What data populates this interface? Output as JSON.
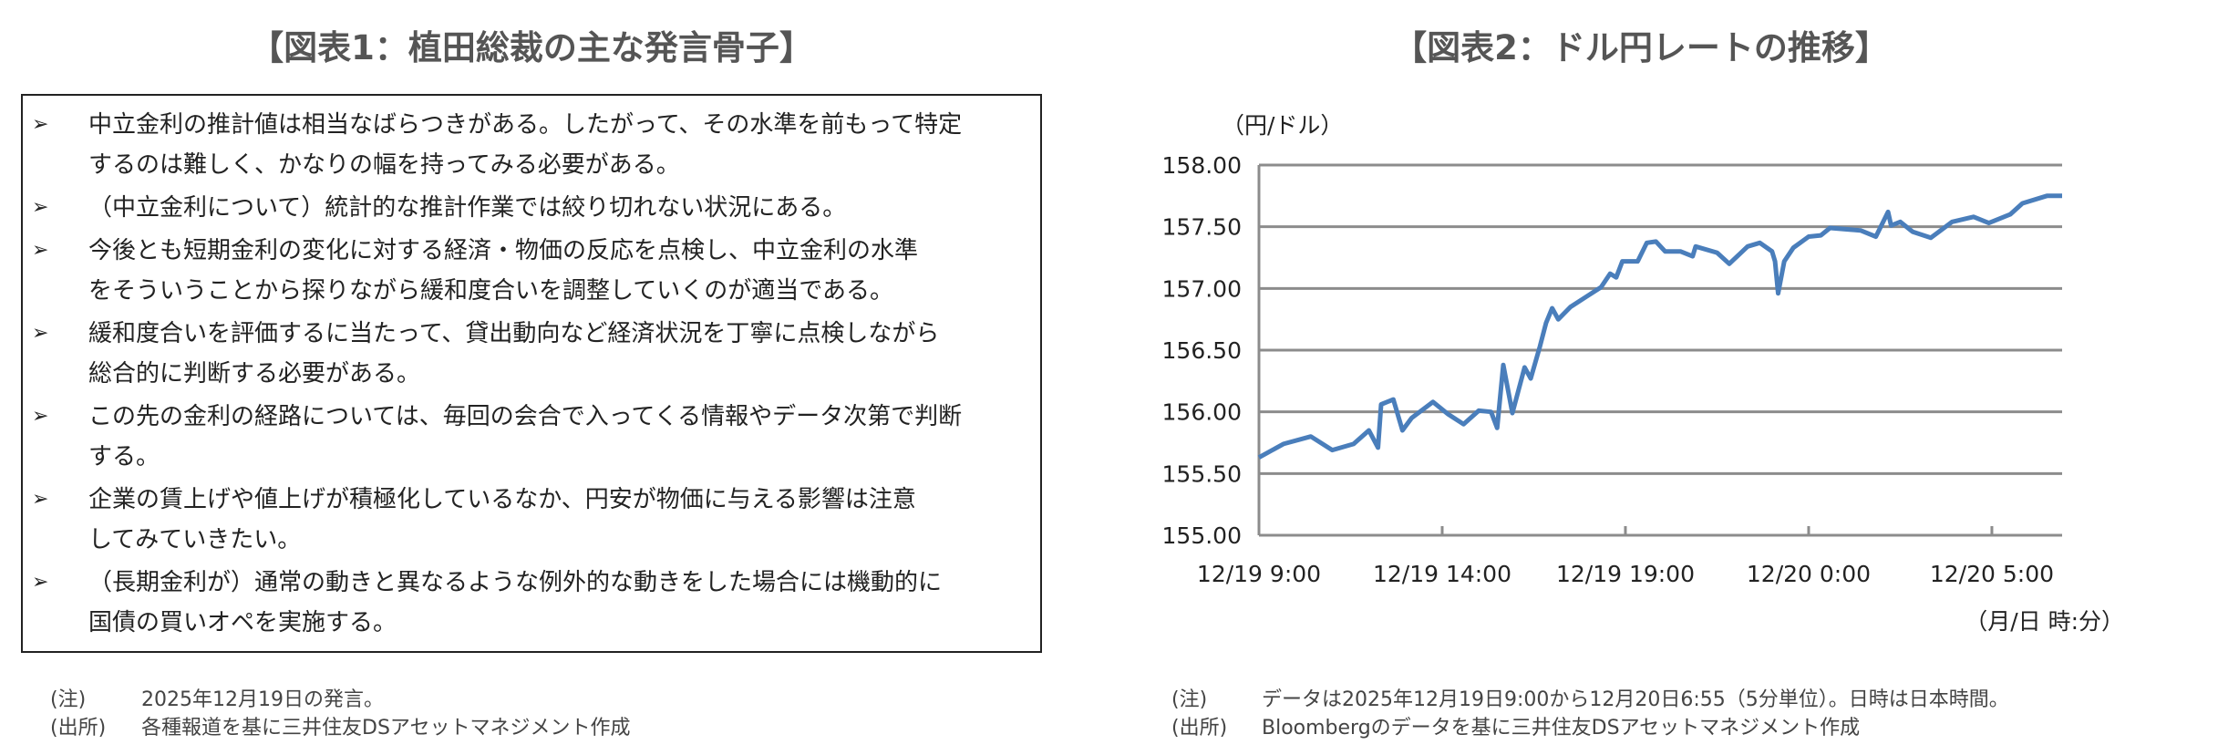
{
  "left_panel": {
    "title": "【図表1：植田総裁の主な発言骨子】",
    "bullet_icon": "➢",
    "items": [
      "中立金利の推計値は相当なばらつきがある。したがって、その水準を前もって特定\nするのは難しく、かなりの幅を持ってみる必要がある。",
      "（中立金利について）統計的な推計作業では絞り切れない状況にある。",
      "今後とも短期金利の変化に対する経済・物価の反応を点検し、中立金利の水準\nをそういうことから探りながら緩和度合いを調整していくのが適当である。",
      "緩和度合いを評価するに当たって、貸出動向など経済状況を丁寧に点検しながら\n総合的に判断する必要がある。",
      "この先の金利の経路については、毎回の会合で入ってくる情報やデータ次第で判断\nする。",
      "企業の賃上げや値上げが積極化しているなか、円安が物価に与える影響は注意\nしてみていきたい。",
      "（長期金利が）通常の動きと異なるような例外的な動きをした場合には機動的に\n国債の買いオペを実施する。"
    ],
    "note_label": "(注)",
    "note": "2025年12月19日の発言。",
    "source_label": "(出所)",
    "source": "各種報道を基に三井住友DSアセットマネジメント作成"
  },
  "right_panel": {
    "title": "【図表2：ドル円レートの推移】",
    "note_label": "(注)",
    "note": "データは2025年12月19日9:00から12月20日6:55（5分単位）。日時は日本時間。",
    "source_label": "(出所)",
    "source": "Bloombergのデータを基に三井住友DSアセットマネジメント作成"
  },
  "chart_data": {
    "type": "line",
    "ylabel": "（円/ドル）",
    "xlabel": "（月/日 時:分）",
    "ylim": [
      155.0,
      158.0
    ],
    "xlim": [
      "2025-12-19 09:00",
      "2025-12-20 06:55"
    ],
    "yticks": [
      "155.00",
      "155.50",
      "156.00",
      "156.50",
      "157.00",
      "157.50",
      "158.00"
    ],
    "xticks": [
      {
        "t": "2025-12-19 09:00",
        "label": "12/19 9:00"
      },
      {
        "t": "2025-12-19 14:00",
        "label": "12/19 14:00"
      },
      {
        "t": "2025-12-19 19:00",
        "label": "12/19 19:00"
      },
      {
        "t": "2025-12-20 00:00",
        "label": "12/20 0:00"
      },
      {
        "t": "2025-12-20 05:00",
        "label": "12/20 5:00"
      }
    ],
    "grid": "horizontal",
    "line_color": "#4a7ebb",
    "series": [
      {
        "x": [
          "2025-12-19 09:00",
          "2025-12-19 09:40",
          "2025-12-19 10:25",
          "2025-12-19 11:00",
          "2025-12-19 11:35",
          "2025-12-19 12:00",
          "2025-12-19 12:15",
          "2025-12-19 12:20",
          "2025-12-19 12:40",
          "2025-12-19 12:55",
          "2025-12-19 13:10",
          "2025-12-19 13:45",
          "2025-12-19 14:10",
          "2025-12-19 14:35",
          "2025-12-19 15:00",
          "2025-12-19 15:20",
          "2025-12-19 15:30",
          "2025-12-19 15:40",
          "2025-12-19 15:55",
          "2025-12-19 16:15",
          "2025-12-19 16:25",
          "2025-12-19 16:40",
          "2025-12-19 16:50",
          "2025-12-19 17:00",
          "2025-12-19 17:10",
          "2025-12-19 17:30",
          "2025-12-19 17:55",
          "2025-12-19 18:20",
          "2025-12-19 18:35",
          "2025-12-19 18:45",
          "2025-12-19 18:55",
          "2025-12-19 19:20",
          "2025-12-19 19:35",
          "2025-12-19 19:50",
          "2025-12-19 20:05",
          "2025-12-19 20:30",
          "2025-12-19 20:50",
          "2025-12-19 20:55",
          "2025-12-19 21:30",
          "2025-12-19 21:50",
          "2025-12-19 22:20",
          "2025-12-19 22:40",
          "2025-12-19 23:00",
          "2025-12-19 23:05",
          "2025-12-19 23:10",
          "2025-12-19 23:20",
          "2025-12-19 23:35",
          "2025-12-20 00:00",
          "2025-12-20 00:20",
          "2025-12-20 00:35",
          "2025-12-20 01:25",
          "2025-12-20 01:50",
          "2025-12-20 02:10",
          "2025-12-20 02:15",
          "2025-12-20 02:30",
          "2025-12-20 02:50",
          "2025-12-20 03:20",
          "2025-12-20 03:55",
          "2025-12-20 04:30",
          "2025-12-20 04:55",
          "2025-12-20 05:30",
          "2025-12-20 05:50",
          "2025-12-20 06:30",
          "2025-12-20 06:55"
        ],
        "values": [
          155.63,
          155.74,
          155.8,
          155.69,
          155.74,
          155.85,
          155.71,
          156.06,
          156.1,
          155.85,
          155.95,
          156.08,
          155.98,
          155.9,
          156.01,
          156.0,
          155.87,
          156.38,
          155.99,
          156.36,
          156.27,
          156.53,
          156.72,
          156.84,
          156.75,
          156.85,
          156.93,
          157.01,
          157.12,
          157.09,
          157.22,
          157.22,
          157.37,
          157.38,
          157.3,
          157.3,
          157.26,
          157.34,
          157.29,
          157.2,
          157.34,
          157.37,
          157.3,
          157.22,
          156.96,
          157.22,
          157.33,
          157.42,
          157.43,
          157.49,
          157.47,
          157.42,
          157.62,
          157.51,
          157.54,
          157.46,
          157.41,
          157.54,
          157.58,
          157.53,
          157.6,
          157.69,
          157.75,
          157.75
        ]
      }
    ]
  }
}
